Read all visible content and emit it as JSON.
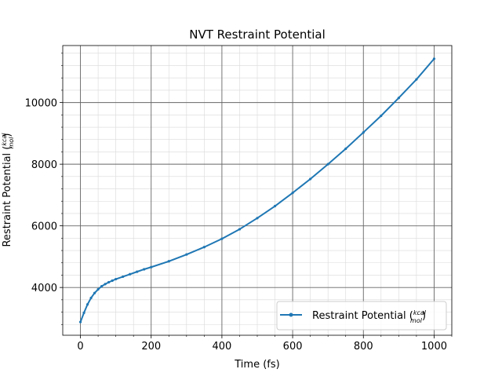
{
  "chart_data": {
    "type": "line",
    "title": "NVT  Restraint Potential",
    "xlabel": "Time (fs)",
    "ylabel": {
      "text": "Restraint Potential (",
      "frac_num": "kcal",
      "frac_den": "mol",
      "suffix": ")"
    },
    "xlim": [
      -50,
      1050
    ],
    "ylim": [
      2450,
      11850
    ],
    "x_ticks": [
      0,
      200,
      400,
      600,
      800,
      1000
    ],
    "x_tick_labels": [
      "0",
      "200",
      "400",
      "600",
      "800",
      "1000"
    ],
    "y_ticks": [
      4000,
      6000,
      8000,
      10000
    ],
    "y_tick_labels": [
      "4000",
      "6000",
      "8000",
      "10000"
    ],
    "grid": "major and minor",
    "legend_position": "lower right",
    "series": [
      {
        "name": {
          "text": "Restraint Potential (",
          "frac_num": "kcal",
          "frac_den": "mol",
          "suffix": ")"
        },
        "color": "#1f77b4",
        "marker": "point",
        "x": [
          0,
          10,
          20,
          30,
          40,
          50,
          60,
          70,
          80,
          90,
          100,
          120,
          140,
          160,
          180,
          200,
          250,
          300,
          350,
          400,
          450,
          500,
          550,
          600,
          650,
          700,
          750,
          800,
          850,
          900,
          950,
          1000
        ],
        "y": [
          2880,
          3180,
          3450,
          3660,
          3820,
          3940,
          4040,
          4110,
          4170,
          4220,
          4270,
          4350,
          4430,
          4510,
          4590,
          4660,
          4850,
          5070,
          5310,
          5580,
          5890,
          6250,
          6640,
          7070,
          7520,
          8000,
          8500,
          9030,
          9570,
          10150,
          10750,
          11420
        ]
      }
    ]
  }
}
